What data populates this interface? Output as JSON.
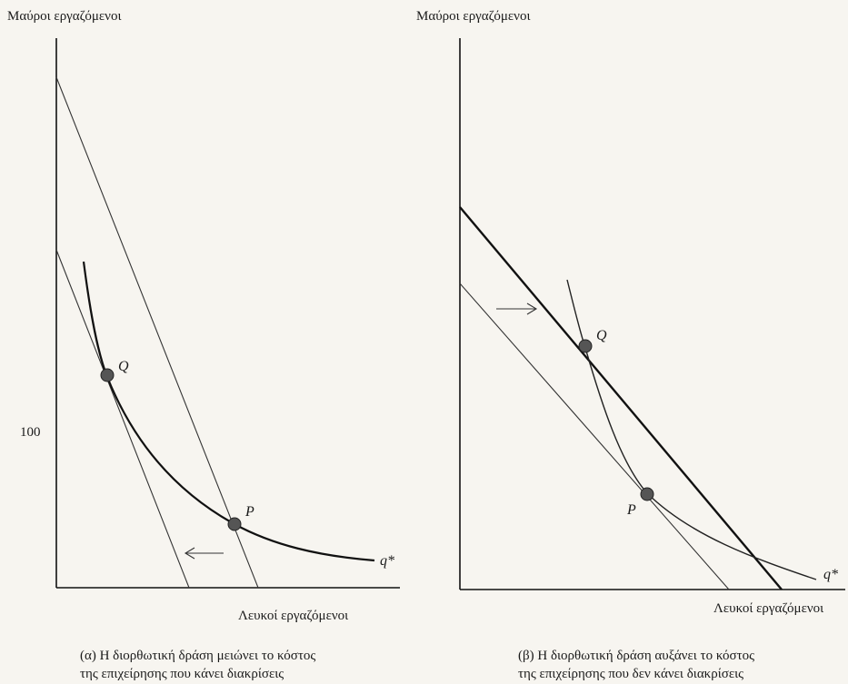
{
  "panel_a": {
    "y_axis_label": "Μαύροι εργαζόμενοι",
    "x_axis_label": "Λευκοί εργαζόμενοι",
    "tick_label": "100",
    "point_q": "Q",
    "point_p": "P",
    "curve_label": "q*",
    "caption_line1": "(α) Η διορθωτική δράση μειώνει το κόστος",
    "caption_line2": "της επιχείρησης που κάνει διακρίσεις"
  },
  "panel_b": {
    "y_axis_label": "Μαύροι εργαζόμενοι",
    "x_axis_label": "Λευκοί εργαζόμενοι",
    "point_q": "Q",
    "point_p": "P",
    "curve_label": "q*",
    "caption_line1": "(β) Η διορθωτική δράση αυξάνει το κόστος",
    "caption_line2": "της επιχείρησης που δεν κάνει διακρίσεις"
  }
}
